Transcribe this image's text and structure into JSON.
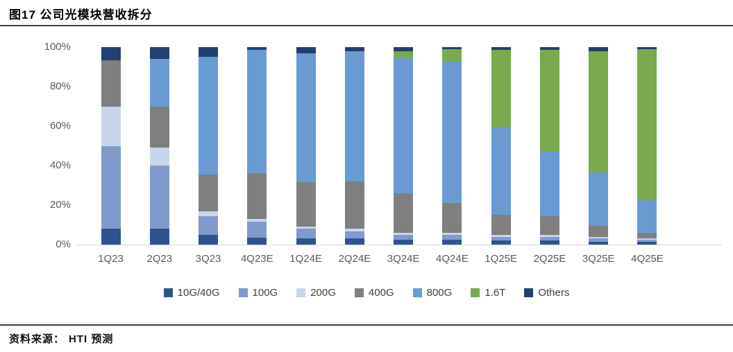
{
  "header": {
    "title": "图17 公司光模块营收拆分"
  },
  "footer": {
    "source_label": "资料来源：",
    "source_value": "HTI 预测"
  },
  "chart_data": {
    "type": "bar",
    "stacked": true,
    "percent_stacked": true,
    "title": "图17 公司光模块营收拆分",
    "xlabel": "",
    "ylabel": "",
    "ylim": [
      0,
      100
    ],
    "grid": false,
    "legend_position": "bottom",
    "y_ticks": [
      "100%",
      "80%",
      "60%",
      "40%",
      "20%",
      "0%"
    ],
    "categories": [
      "1Q23",
      "2Q23",
      "3Q23",
      "4Q23E",
      "1Q24E",
      "2Q24E",
      "3Q24E",
      "4Q24E",
      "1Q25E",
      "2Q25E",
      "3Q25E",
      "4Q25E"
    ],
    "series": [
      {
        "name": "10G/40G",
        "color": "#2F5391",
        "values": [
          8,
          8,
          5,
          3.5,
          3,
          3,
          2.5,
          2.5,
          2,
          2,
          1.5,
          1.5
        ]
      },
      {
        "name": "100G",
        "color": "#8199CB",
        "values": [
          42,
          32,
          9.5,
          8,
          5,
          3.5,
          2.5,
          2.5,
          2,
          2,
          1.5,
          1
        ]
      },
      {
        "name": "200G",
        "color": "#C9D5EB",
        "values": [
          20,
          9,
          2.5,
          1.5,
          1,
          1.5,
          1,
          1,
          1,
          1,
          1,
          0.5
        ]
      },
      {
        "name": "400G",
        "color": "#7F7F7F",
        "values": [
          23.5,
          21,
          18.5,
          23,
          22.5,
          24,
          20,
          15,
          10,
          9.5,
          5.5,
          3
        ]
      },
      {
        "name": "800G",
        "color": "#699BD2",
        "values": [
          0,
          24,
          59.5,
          62.5,
          65.5,
          66,
          68.5,
          72,
          44.5,
          33,
          27,
          16.5
        ]
      },
      {
        "name": "1.6T",
        "color": "#77AB4D",
        "values": [
          0,
          0,
          0,
          0,
          0,
          0,
          3.5,
          6,
          39,
          51,
          61.5,
          76.5
        ]
      },
      {
        "name": "Others",
        "color": "#24406F",
        "values": [
          6.5,
          6,
          5,
          1.5,
          3,
          2,
          2,
          1,
          1.5,
          1.5,
          2,
          1
        ]
      }
    ]
  }
}
